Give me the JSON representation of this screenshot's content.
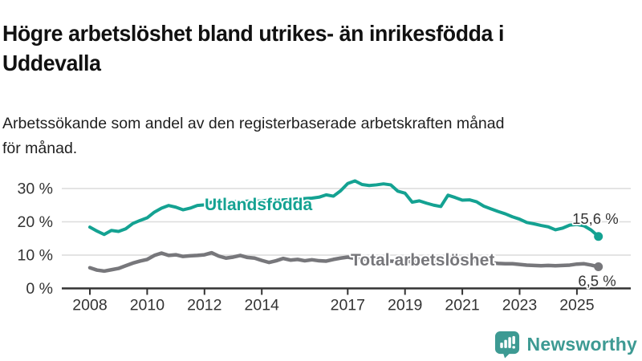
{
  "page": {
    "title": "Högre arbetslöshet bland utrikes- än inrikesfödda i\nUddevalla",
    "subtitle": "Arbetssökande som andel av den registerbaserade arbetskraften månad\nför månad."
  },
  "branding": {
    "logo_text": "Newsworthy",
    "logo_icon": "bar-chart-speech-bubble-icon",
    "logo_color": "#3d9a93"
  },
  "colors": {
    "foreign_born_line": "#14a292",
    "total_line": "#77777b",
    "grid": "#dcdcdc",
    "axis": "#333333",
    "annotation_text": "#333333",
    "title_text": "#111111",
    "background": "#ffffff"
  },
  "chart_data": {
    "type": "line",
    "title": "",
    "xlabel": "",
    "ylabel": "",
    "y_tick_suffix": " %",
    "y_ticks": [
      0,
      10,
      20,
      30
    ],
    "x_ticks": [
      2008,
      2010,
      2012,
      2014,
      2017,
      2019,
      2021,
      2023,
      2025
    ],
    "x_range": [
      2008,
      2025.75
    ],
    "y_range": [
      0,
      38
    ],
    "grid": "horizontal",
    "legend_position": "inline-labels",
    "x": [
      2008,
      2008.25,
      2008.5,
      2008.75,
      2009,
      2009.25,
      2009.5,
      2009.75,
      2010,
      2010.25,
      2010.5,
      2010.75,
      2011,
      2011.25,
      2011.5,
      2011.75,
      2012,
      2012.25,
      2012.5,
      2012.75,
      2013,
      2013.25,
      2013.5,
      2013.75,
      2014,
      2014.25,
      2014.5,
      2014.75,
      2015,
      2015.25,
      2015.5,
      2015.75,
      2016,
      2016.25,
      2016.5,
      2016.75,
      2017,
      2017.25,
      2017.5,
      2017.75,
      2018,
      2018.25,
      2018.5,
      2018.75,
      2019,
      2019.25,
      2019.5,
      2019.75,
      2020,
      2020.25,
      2020.5,
      2020.75,
      2021,
      2021.25,
      2021.5,
      2021.75,
      2022,
      2022.25,
      2022.5,
      2022.75,
      2023,
      2023.25,
      2023.5,
      2023.75,
      2024,
      2024.25,
      2024.5,
      2024.75,
      2025,
      2025.25,
      2025.5,
      2025.75
    ],
    "series": [
      {
        "id": "utlandsfodda",
        "name": "Utlandsfödda",
        "color": "#14a292",
        "end_label": "15,6 %",
        "end_value": 15.6,
        "values": [
          18.4,
          17.2,
          16.2,
          17.4,
          17.1,
          17.9,
          19.5,
          20.4,
          21.2,
          22.9,
          24.1,
          24.9,
          24.4,
          23.6,
          24.1,
          24.9,
          25.1,
          25.9,
          25.7,
          25.9,
          26.1,
          26.0,
          26.2,
          26.1,
          26.3,
          26.5,
          26.3,
          26.6,
          26.7,
          26.9,
          27.0,
          27.1,
          27.4,
          28.1,
          27.7,
          29.3,
          31.5,
          32.3,
          31.2,
          30.9,
          31.1,
          31.4,
          31.1,
          29.2,
          28.6,
          25.9,
          26.3,
          25.6,
          25.0,
          24.6,
          28.0,
          27.3,
          26.5,
          26.6,
          26.0,
          24.7,
          23.9,
          23.1,
          22.4,
          21.5,
          20.8,
          19.8,
          19.4,
          18.9,
          18.5,
          17.6,
          18.1,
          19.0,
          19.2,
          18.8,
          17.5,
          15.6
        ]
      },
      {
        "id": "total-arbetsloshet",
        "name": "Total arbetslöshet",
        "color": "#77777b",
        "end_label": "6,5 %",
        "end_value": 6.5,
        "values": [
          6.2,
          5.5,
          5.2,
          5.6,
          6.0,
          6.8,
          7.6,
          8.2,
          8.7,
          9.9,
          10.6,
          9.9,
          10.1,
          9.6,
          9.8,
          9.9,
          10.1,
          10.7,
          9.7,
          9.1,
          9.4,
          9.9,
          9.3,
          9.1,
          8.4,
          7.8,
          8.3,
          9.0,
          8.5,
          8.7,
          8.3,
          8.6,
          8.3,
          8.2,
          8.7,
          9.1,
          9.4,
          9.0,
          8.8,
          8.7,
          8.6,
          8.4,
          8.2,
          8.1,
          8.2,
          8.0,
          7.9,
          7.8,
          7.9,
          8.8,
          9.3,
          9.1,
          8.8,
          8.5,
          8.2,
          7.9,
          7.7,
          7.5,
          7.4,
          7.4,
          7.2,
          7.0,
          6.9,
          6.8,
          6.9,
          6.8,
          6.9,
          7.0,
          7.3,
          7.4,
          7.0,
          6.5
        ]
      }
    ]
  }
}
